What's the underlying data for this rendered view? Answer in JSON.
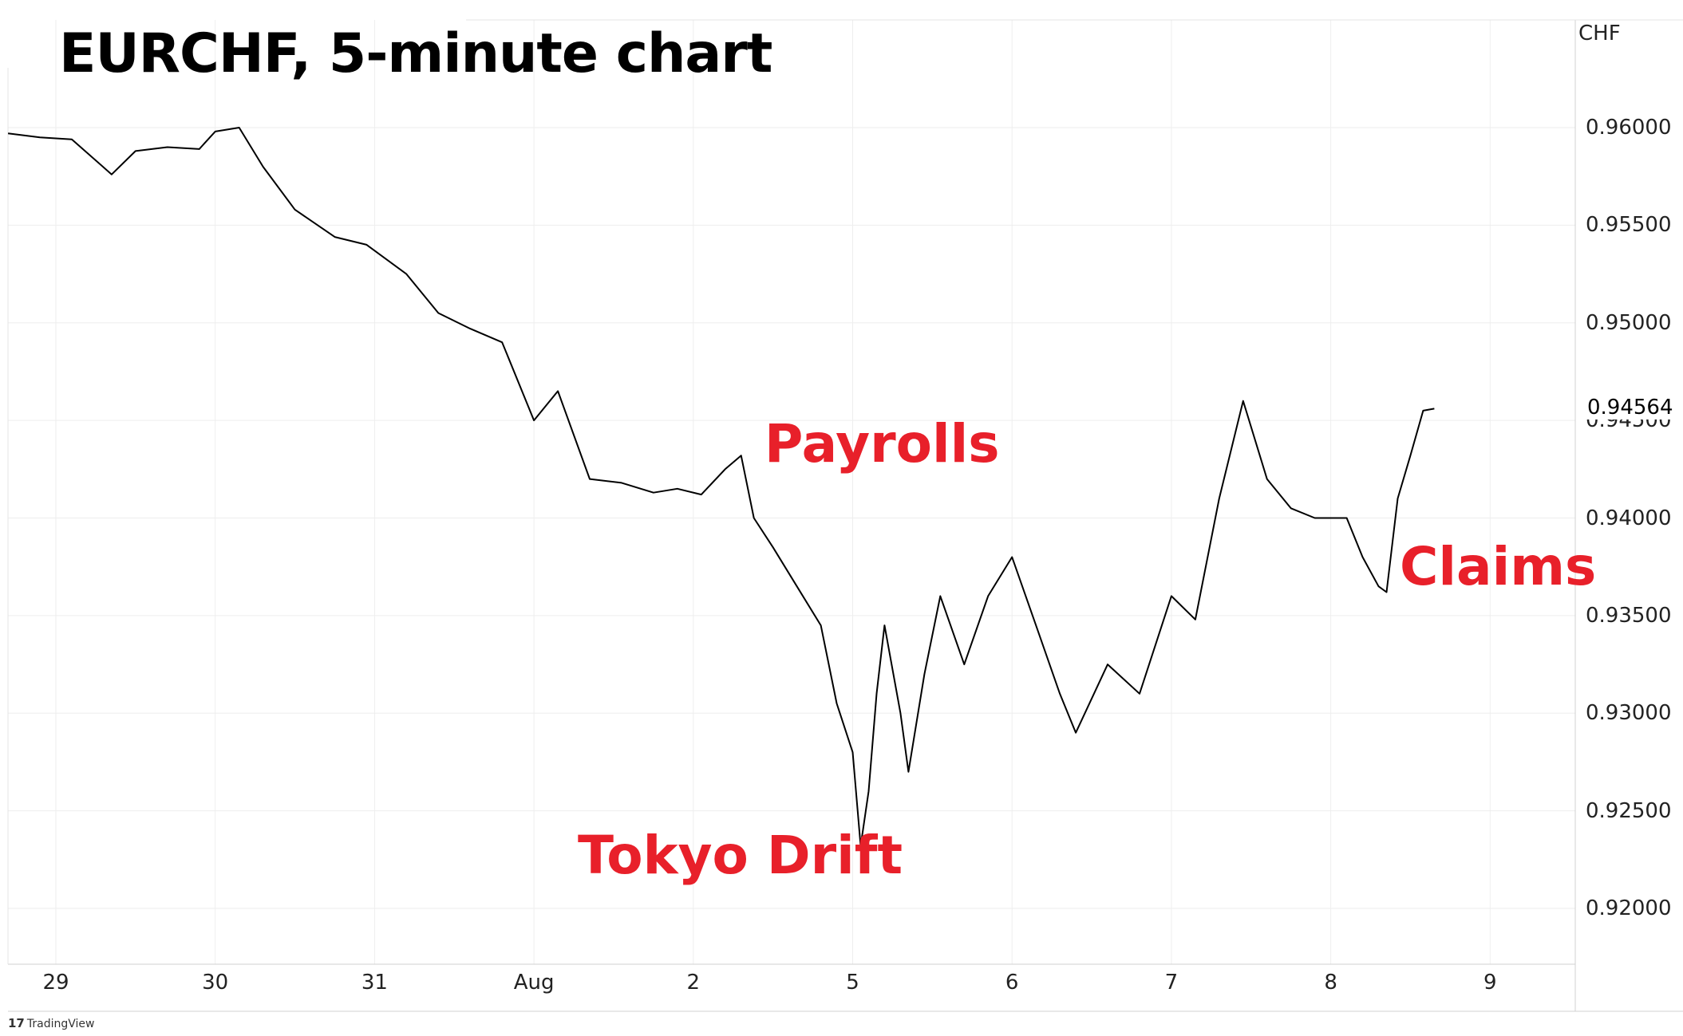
{
  "title": "EURCHF, 5-minute chart",
  "currency_label": "CHF",
  "watermark": "TradingView",
  "annotations": {
    "payrolls": "Payrolls",
    "tokyo_drift": "Tokyo Drift",
    "claims": "Claims"
  },
  "colors": {
    "price_line": "#000000",
    "annotation": "#e8202a",
    "grid": "#eeeeee"
  },
  "chart_data": {
    "type": "line",
    "title": "EURCHF, 5-minute chart",
    "xlabel": "",
    "ylabel": "CHF",
    "ylim": [
      0.9172,
      0.9658
    ],
    "grid": true,
    "last_price": "0.94564",
    "x_ticks": [
      "29",
      "30",
      "31",
      "Aug",
      "2",
      "5",
      "6",
      "7",
      "8",
      "9"
    ],
    "y_ticks": [
      "0.96000",
      "0.95500",
      "0.95000",
      "0.94500",
      "0.94000",
      "0.93500",
      "0.93000",
      "0.92500",
      "0.92000"
    ],
    "y_tick_values": [
      0.96,
      0.955,
      0.95,
      0.945,
      0.94,
      0.935,
      0.93,
      0.925,
      0.92
    ],
    "series": [
      {
        "x": [
          -0.3,
          -0.1,
          0.1,
          0.35,
          0.5,
          0.7,
          0.9,
          1.0,
          1.15,
          1.3,
          1.5,
          1.75,
          1.95,
          2.2,
          2.4,
          2.6,
          2.8,
          3.0,
          3.15,
          3.35,
          3.55,
          3.75,
          3.9,
          4.05,
          4.2,
          4.3,
          4.38,
          4.5,
          4.65,
          4.8,
          4.9,
          5.0,
          5.05,
          5.1,
          5.15,
          5.2,
          5.3,
          5.35,
          5.45,
          5.55,
          5.7,
          5.85,
          6.0,
          6.15,
          6.3,
          6.4,
          6.6,
          6.8,
          7.0,
          7.15,
          7.3,
          7.45,
          7.6,
          7.75,
          7.9,
          8.1,
          8.2,
          8.3,
          8.35,
          8.42,
          8.5,
          8.58,
          8.65
        ],
        "values": [
          0.9597,
          0.9595,
          0.9594,
          0.9576,
          0.9588,
          0.959,
          0.9589,
          0.9598,
          0.96,
          0.958,
          0.9558,
          0.9544,
          0.954,
          0.9525,
          0.9505,
          0.9497,
          0.949,
          0.945,
          0.9465,
          0.942,
          0.9418,
          0.9413,
          0.9415,
          0.9412,
          0.9425,
          0.9432,
          0.94,
          0.9385,
          0.9365,
          0.9345,
          0.9305,
          0.928,
          0.9232,
          0.926,
          0.931,
          0.9345,
          0.93,
          0.927,
          0.932,
          0.936,
          0.9325,
          0.936,
          0.938,
          0.9345,
          0.931,
          0.929,
          0.9325,
          0.931,
          0.936,
          0.9348,
          0.941,
          0.946,
          0.942,
          0.9405,
          0.94,
          0.94,
          0.938,
          0.9365,
          0.9362,
          0.941,
          0.9432,
          0.9455,
          0.9456
        ]
      }
    ]
  }
}
